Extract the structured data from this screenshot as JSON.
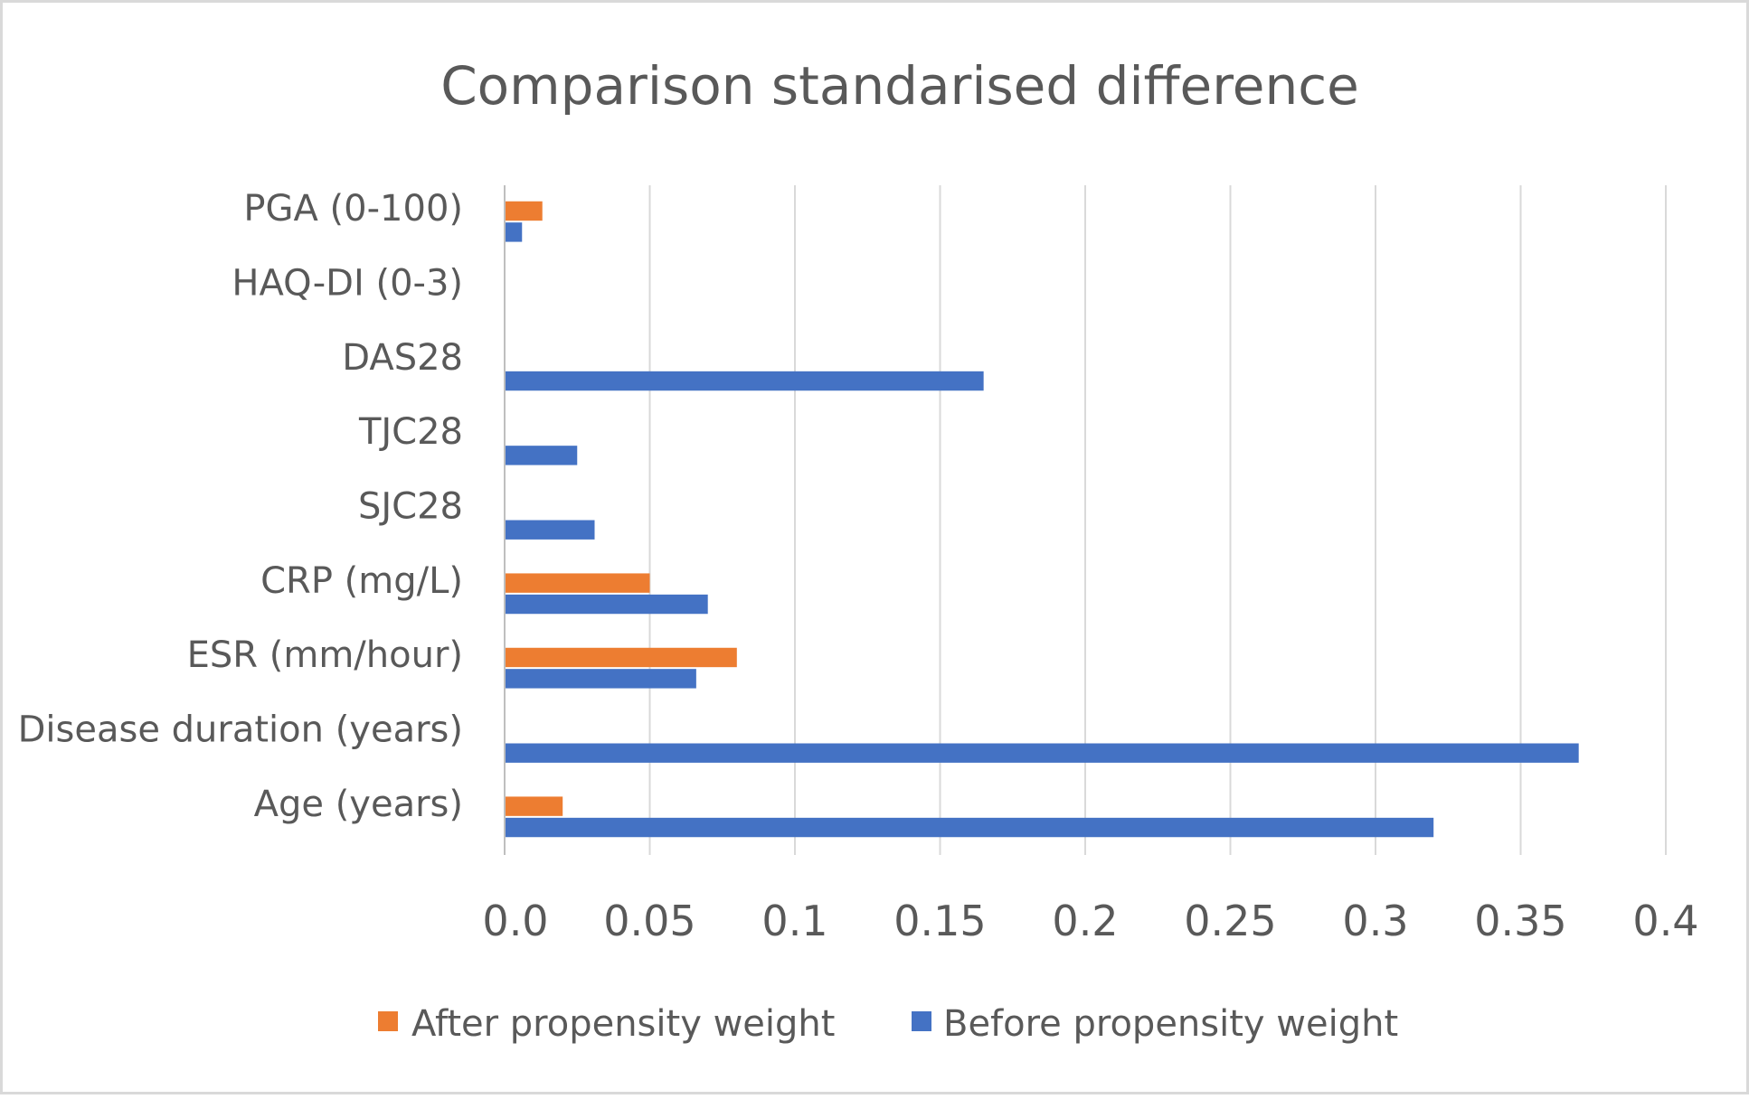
{
  "chart_data": {
    "type": "bar",
    "orientation": "horizontal",
    "title": "Comparison standarised difference",
    "categories": [
      "Age (years)",
      "Disease duration (years)",
      "ESR (mm/hour)",
      "CRP (mg/L)",
      "SJC28",
      "TJC28",
      "DAS28",
      "HAQ-DI (0-3)",
      "PGA (0-100)"
    ],
    "series": [
      {
        "name": "After propensity weight",
        "color": "#ED7D31",
        "values": [
          0.02,
          0,
          0.08,
          0.05,
          0,
          0,
          0,
          0,
          0.013
        ]
      },
      {
        "name": "Before propensity weight",
        "color": "#4472C4",
        "values": [
          0.32,
          0.37,
          0.066,
          0.07,
          0.031,
          0.025,
          0.165,
          0,
          0.006
        ]
      }
    ],
    "xlim": [
      0,
      0.4
    ],
    "xticks": [
      "0.0",
      "0.05",
      "0.1",
      "0.15",
      "0.2",
      "0.25",
      "0.3",
      "0.35",
      "0.4"
    ],
    "xtick_values": [
      0,
      0.05,
      0.1,
      0.15,
      0.2,
      0.25,
      0.3,
      0.35,
      0.4
    ],
    "xlabel": "",
    "ylabel": "",
    "grid": "vertical",
    "legend": "bottom"
  }
}
